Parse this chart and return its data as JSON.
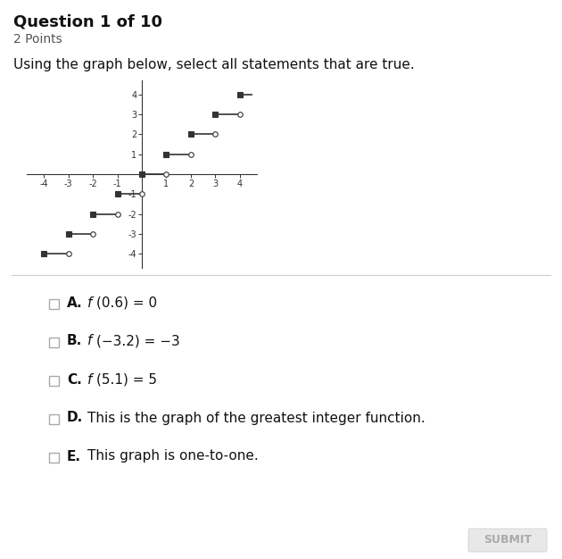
{
  "title": "Question 1 of 10",
  "subtitle": "2 Points",
  "question_text": "Using the graph below, select all statements that are true.",
  "graph": {
    "xlim": [
      -4.7,
      4.7
    ],
    "ylim": [
      -4.7,
      4.7
    ],
    "xticks": [
      -4,
      -3,
      -2,
      -1,
      1,
      2,
      3,
      4
    ],
    "yticks": [
      -4,
      -3,
      -2,
      -1,
      1,
      2,
      3,
      4
    ],
    "segments": [
      {
        "x_start": -4,
        "x_end": -3,
        "y": -4,
        "closed_left": true,
        "open_right": true
      },
      {
        "x_start": -3,
        "x_end": -2,
        "y": -3,
        "closed_left": true,
        "open_right": true
      },
      {
        "x_start": -2,
        "x_end": -1,
        "y": -2,
        "closed_left": true,
        "open_right": true
      },
      {
        "x_start": -1,
        "x_end": 0,
        "y": -1,
        "closed_left": true,
        "open_right": true
      },
      {
        "x_start": 0,
        "x_end": 1,
        "y": 0,
        "closed_left": true,
        "open_right": true
      },
      {
        "x_start": 1,
        "x_end": 2,
        "y": 1,
        "closed_left": true,
        "open_right": true
      },
      {
        "x_start": 2,
        "x_end": 3,
        "y": 2,
        "closed_left": true,
        "open_right": true
      },
      {
        "x_start": 3,
        "x_end": 4,
        "y": 3,
        "closed_left": true,
        "open_right": true
      },
      {
        "x_start": 4,
        "x_end": 4.5,
        "y": 4,
        "closed_left": true,
        "open_right": false
      }
    ]
  },
  "choices": [
    {
      "label": "A.",
      "italic": "f",
      "eq": "(0.6) = 0"
    },
    {
      "label": "B.",
      "italic": "f",
      "eq": "(−3.2) = −3"
    },
    {
      "label": "C.",
      "italic": "f",
      "eq": "(5.1) = 5"
    },
    {
      "label": "D.",
      "italic": "",
      "eq": "This is the graph of the greatest integer function."
    },
    {
      "label": "E.",
      "italic": "",
      "eq": "This graph is one-to-one."
    }
  ],
  "button_text": "SUBMIT",
  "line_color": "#333333",
  "dot_fill_closed": "#333333",
  "dot_fill_open": "#ffffff",
  "dot_edge_color": "#333333",
  "background_color": "#ffffff"
}
